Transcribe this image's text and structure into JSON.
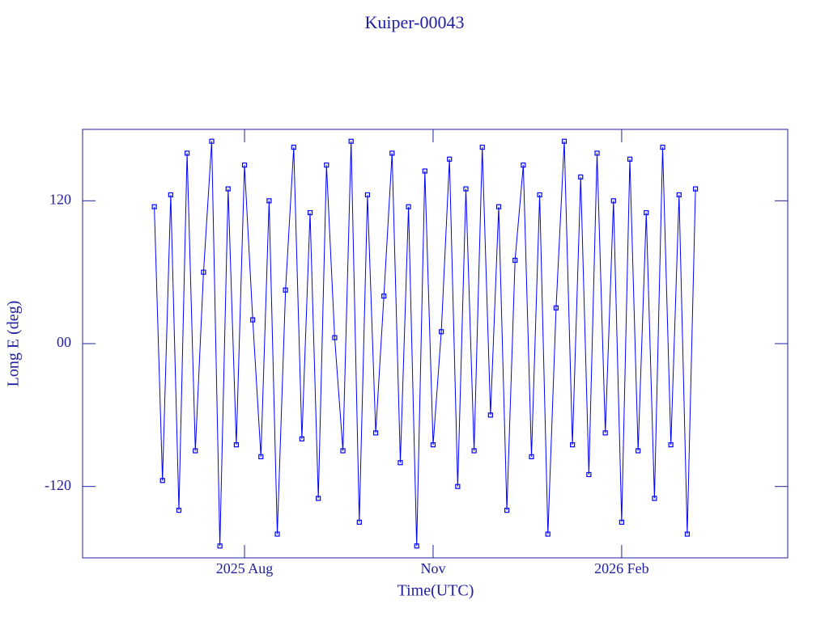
{
  "chart_data": {
    "type": "line",
    "title": "Kuiper-00043",
    "x_label": "Time(UTC)",
    "y_label": "Long E (deg)",
    "color": "#0000ff",
    "axis_color": "#2020a0",
    "xlim": [
      "2025-05-14",
      "2026-04-23"
    ],
    "xticks": [
      {
        "value": "2025-08-01",
        "label": "2025 Aug"
      },
      {
        "value": "2025-11-01",
        "label": "Nov"
      },
      {
        "value": "2026-02-01",
        "label": "2026 Feb"
      }
    ],
    "ylim": [
      -180,
      180
    ],
    "yticks": [
      -120,
      {
        "value": 0,
        "label": "00"
      },
      120
    ],
    "x": [
      "2025-06-18",
      "2025-06-22",
      "2025-06-26",
      "2025-06-30",
      "2025-07-04",
      "2025-07-08",
      "2025-07-12",
      "2025-07-16",
      "2025-07-20",
      "2025-07-24",
      "2025-07-28",
      "2025-08-01",
      "2025-08-05",
      "2025-08-09",
      "2025-08-13",
      "2025-08-17",
      "2025-08-21",
      "2025-08-25",
      "2025-08-29",
      "2025-09-02",
      "2025-09-06",
      "2025-09-10",
      "2025-09-14",
      "2025-09-18",
      "2025-09-22",
      "2025-09-26",
      "2025-09-30",
      "2025-10-04",
      "2025-10-08",
      "2025-10-12",
      "2025-10-16",
      "2025-10-20",
      "2025-10-24",
      "2025-10-28",
      "2025-11-01",
      "2025-11-05",
      "2025-11-09",
      "2025-11-13",
      "2025-11-17",
      "2025-11-21",
      "2025-11-25",
      "2025-11-29",
      "2025-12-03",
      "2025-12-07",
      "2025-12-11",
      "2025-12-15",
      "2025-12-19",
      "2025-12-23",
      "2025-12-27",
      "2025-12-31",
      "2026-01-04",
      "2026-01-08",
      "2026-01-12",
      "2026-01-16",
      "2026-01-20",
      "2026-01-24",
      "2026-01-28",
      "2026-02-01",
      "2026-02-05",
      "2026-02-09",
      "2026-02-13",
      "2026-02-17",
      "2026-02-21",
      "2026-02-25",
      "2026-03-01",
      "2026-03-05",
      "2026-03-09"
    ],
    "values": [
      115,
      -115,
      125,
      -140,
      160,
      -90,
      60,
      170,
      -170,
      130,
      -85,
      150,
      20,
      -95,
      120,
      -160,
      45,
      165,
      -80,
      110,
      -130,
      150,
      5,
      -90,
      170,
      -150,
      125,
      -75,
      40,
      160,
      -100,
      115,
      -170,
      145,
      -85,
      10,
      155,
      -120,
      130,
      -90,
      165,
      -60,
      115,
      -140,
      70,
      150,
      -95,
      125,
      -160,
      30,
      170,
      -85,
      140,
      -110,
      160,
      -75,
      120,
      -150,
      155,
      -90,
      110,
      -130,
      165,
      -85,
      125,
      -160,
      130
    ]
  }
}
